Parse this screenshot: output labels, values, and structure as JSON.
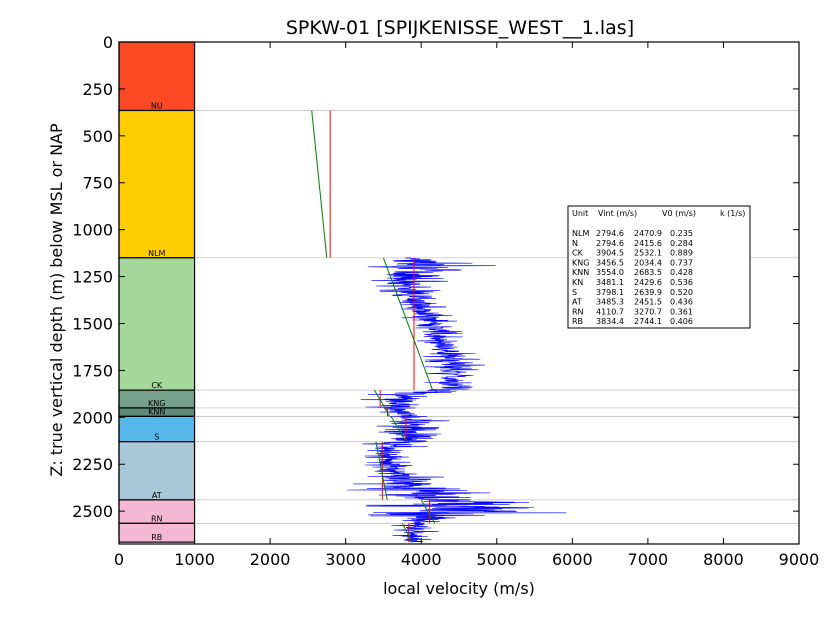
{
  "chart_data": {
    "type": "line",
    "title": "SPKW-01 [SPIJKENISSE_WEST__1.las]",
    "xlabel": "local velocity (m/s)",
    "ylabel": "Z: true vertical depth (m) below MSL or NAP",
    "xlim": [
      0,
      9000
    ],
    "ylim": [
      2675,
      0
    ],
    "y_inverted": true,
    "x_ticks": [
      0,
      1000,
      2000,
      3000,
      4000,
      5000,
      6000,
      7000,
      8000,
      9000
    ],
    "y_ticks": [
      0,
      250,
      500,
      750,
      1000,
      1250,
      1500,
      1750,
      2000,
      2250,
      2500
    ],
    "units": [
      {
        "name": "NU",
        "top": 0,
        "bottom": 365,
        "color": "#fb4a25"
      },
      {
        "name": "NLM",
        "top": 365,
        "bottom": 1150,
        "color": "#ffcc00"
      },
      {
        "name": "CK",
        "top": 1150,
        "bottom": 1855,
        "color": "#a6d79a"
      },
      {
        "name": "KNG",
        "top": 1855,
        "bottom": 1950,
        "color": "#76a08b"
      },
      {
        "name": "KNN",
        "top": 1950,
        "bottom": 1995,
        "color": "#5d8a78"
      },
      {
        "name": "S",
        "top": 1995,
        "bottom": 2130,
        "color": "#55b8e8"
      },
      {
        "name": "AT",
        "top": 2130,
        "bottom": 2440,
        "color": "#a8c8da"
      },
      {
        "name": "RN",
        "top": 2440,
        "bottom": 2565,
        "color": "#f5b8d2"
      },
      {
        "name": "RB",
        "top": 2565,
        "bottom": 2665,
        "color": "#f5b8d2"
      }
    ],
    "interval_velocity": [
      {
        "unit": "NLM",
        "top": 365,
        "bottom": 1150,
        "vint": 2794.6
      },
      {
        "unit": "CK",
        "top": 1150,
        "bottom": 1855,
        "vint": 3904.5
      },
      {
        "unit": "KNG",
        "top": 1855,
        "bottom": 1950,
        "vint": 3456.5
      },
      {
        "unit": "KNN",
        "top": 1950,
        "bottom": 1995,
        "vint": 3554.0
      },
      {
        "unit": "S",
        "top": 1995,
        "bottom": 2130,
        "vint": 3798.1
      },
      {
        "unit": "AT",
        "top": 2130,
        "bottom": 2440,
        "vint": 3485.3
      },
      {
        "unit": "RN",
        "top": 2440,
        "bottom": 2565,
        "vint": 4110.7
      },
      {
        "unit": "RB",
        "top": 2565,
        "bottom": 2665,
        "vint": 3834.4
      }
    ],
    "trend_lines": [
      {
        "unit": "NLM",
        "points": [
          [
            2550,
            365
          ],
          [
            2750,
            1150
          ]
        ]
      },
      {
        "unit": "CK",
        "points": [
          [
            3500,
            1150
          ],
          [
            4150,
            1855
          ]
        ]
      },
      {
        "unit": "KNG",
        "points": [
          [
            3380,
            1855
          ],
          [
            3520,
            1950
          ]
        ]
      },
      {
        "unit": "KNN",
        "points": [
          [
            3520,
            1950
          ],
          [
            3580,
            1995
          ]
        ]
      },
      {
        "unit": "S",
        "points": [
          [
            3600,
            1995
          ],
          [
            3800,
            2130
          ]
        ]
      },
      {
        "unit": "AT",
        "points": [
          [
            3400,
            2130
          ],
          [
            3550,
            2440
          ]
        ]
      },
      {
        "unit": "RN",
        "points": [
          [
            4000,
            2440
          ],
          [
            4180,
            2565
          ]
        ]
      },
      {
        "unit": "RB",
        "points": [
          [
            3750,
            2565
          ],
          [
            3880,
            2665
          ]
        ]
      }
    ],
    "log_envelope": [
      [
        1150,
        3200,
        4900
      ],
      [
        1200,
        3100,
        5000
      ],
      [
        1250,
        3300,
        4500
      ],
      [
        1300,
        3400,
        4200
      ],
      [
        1350,
        3500,
        4300
      ],
      [
        1400,
        3600,
        4300
      ],
      [
        1450,
        3700,
        4400
      ],
      [
        1500,
        3800,
        4500
      ],
      [
        1550,
        3900,
        4550
      ],
      [
        1600,
        3950,
        4600
      ],
      [
        1650,
        4000,
        4700
      ],
      [
        1700,
        4050,
        4800
      ],
      [
        1750,
        4050,
        4900
      ],
      [
        1800,
        4100,
        4800
      ],
      [
        1850,
        3900,
        4900
      ],
      [
        1880,
        3200,
        4300
      ],
      [
        1920,
        3200,
        4200
      ],
      [
        1960,
        3300,
        4000
      ],
      [
        2000,
        3400,
        4300
      ],
      [
        2050,
        3300,
        4500
      ],
      [
        2100,
        3200,
        4600
      ],
      [
        2130,
        3000,
        4300
      ],
      [
        2180,
        3200,
        3900
      ],
      [
        2230,
        3300,
        3800
      ],
      [
        2280,
        3200,
        4100
      ],
      [
        2330,
        3200,
        4400
      ],
      [
        2380,
        3000,
        4800
      ],
      [
        2420,
        3100,
        5000
      ],
      [
        2460,
        3300,
        5900
      ],
      [
        2500,
        3200,
        6300
      ],
      [
        2540,
        3400,
        4600
      ],
      [
        2580,
        3500,
        4300
      ],
      [
        2620,
        3600,
        4200
      ],
      [
        2665,
        3700,
        4100
      ]
    ],
    "legend": {
      "header": [
        "Unit",
        "Vint (m/s)",
        "V0 (m/s)",
        "k (1/s)"
      ],
      "rows": [
        [
          "NLM",
          "2794.6",
          "2470.9",
          "0.235"
        ],
        [
          "N",
          "2794.6",
          "2415.6",
          "0.284"
        ],
        [
          "CK",
          "3904.5",
          "2532.1",
          "0.889"
        ],
        [
          "KNG",
          "3456.5",
          "2034.4",
          "0.737"
        ],
        [
          "KNN",
          "3554.0",
          "2683.5",
          "0.428"
        ],
        [
          "KN",
          "3481.1",
          "2429.6",
          "0.536"
        ],
        [
          "S",
          "3798.1",
          "2639.9",
          "0.520"
        ],
        [
          "AT",
          "3485.3",
          "2451.5",
          "0.436"
        ],
        [
          "RN",
          "4110.7",
          "3270.7",
          "0.361"
        ],
        [
          "RB",
          "3834.4",
          "2744.1",
          "0.406"
        ]
      ],
      "placement": "right"
    },
    "colors": {
      "log": "#0000ff",
      "interval": "#ff0000",
      "trend": "#008000",
      "boundary": "#bbbbbb"
    },
    "grid": false
  }
}
